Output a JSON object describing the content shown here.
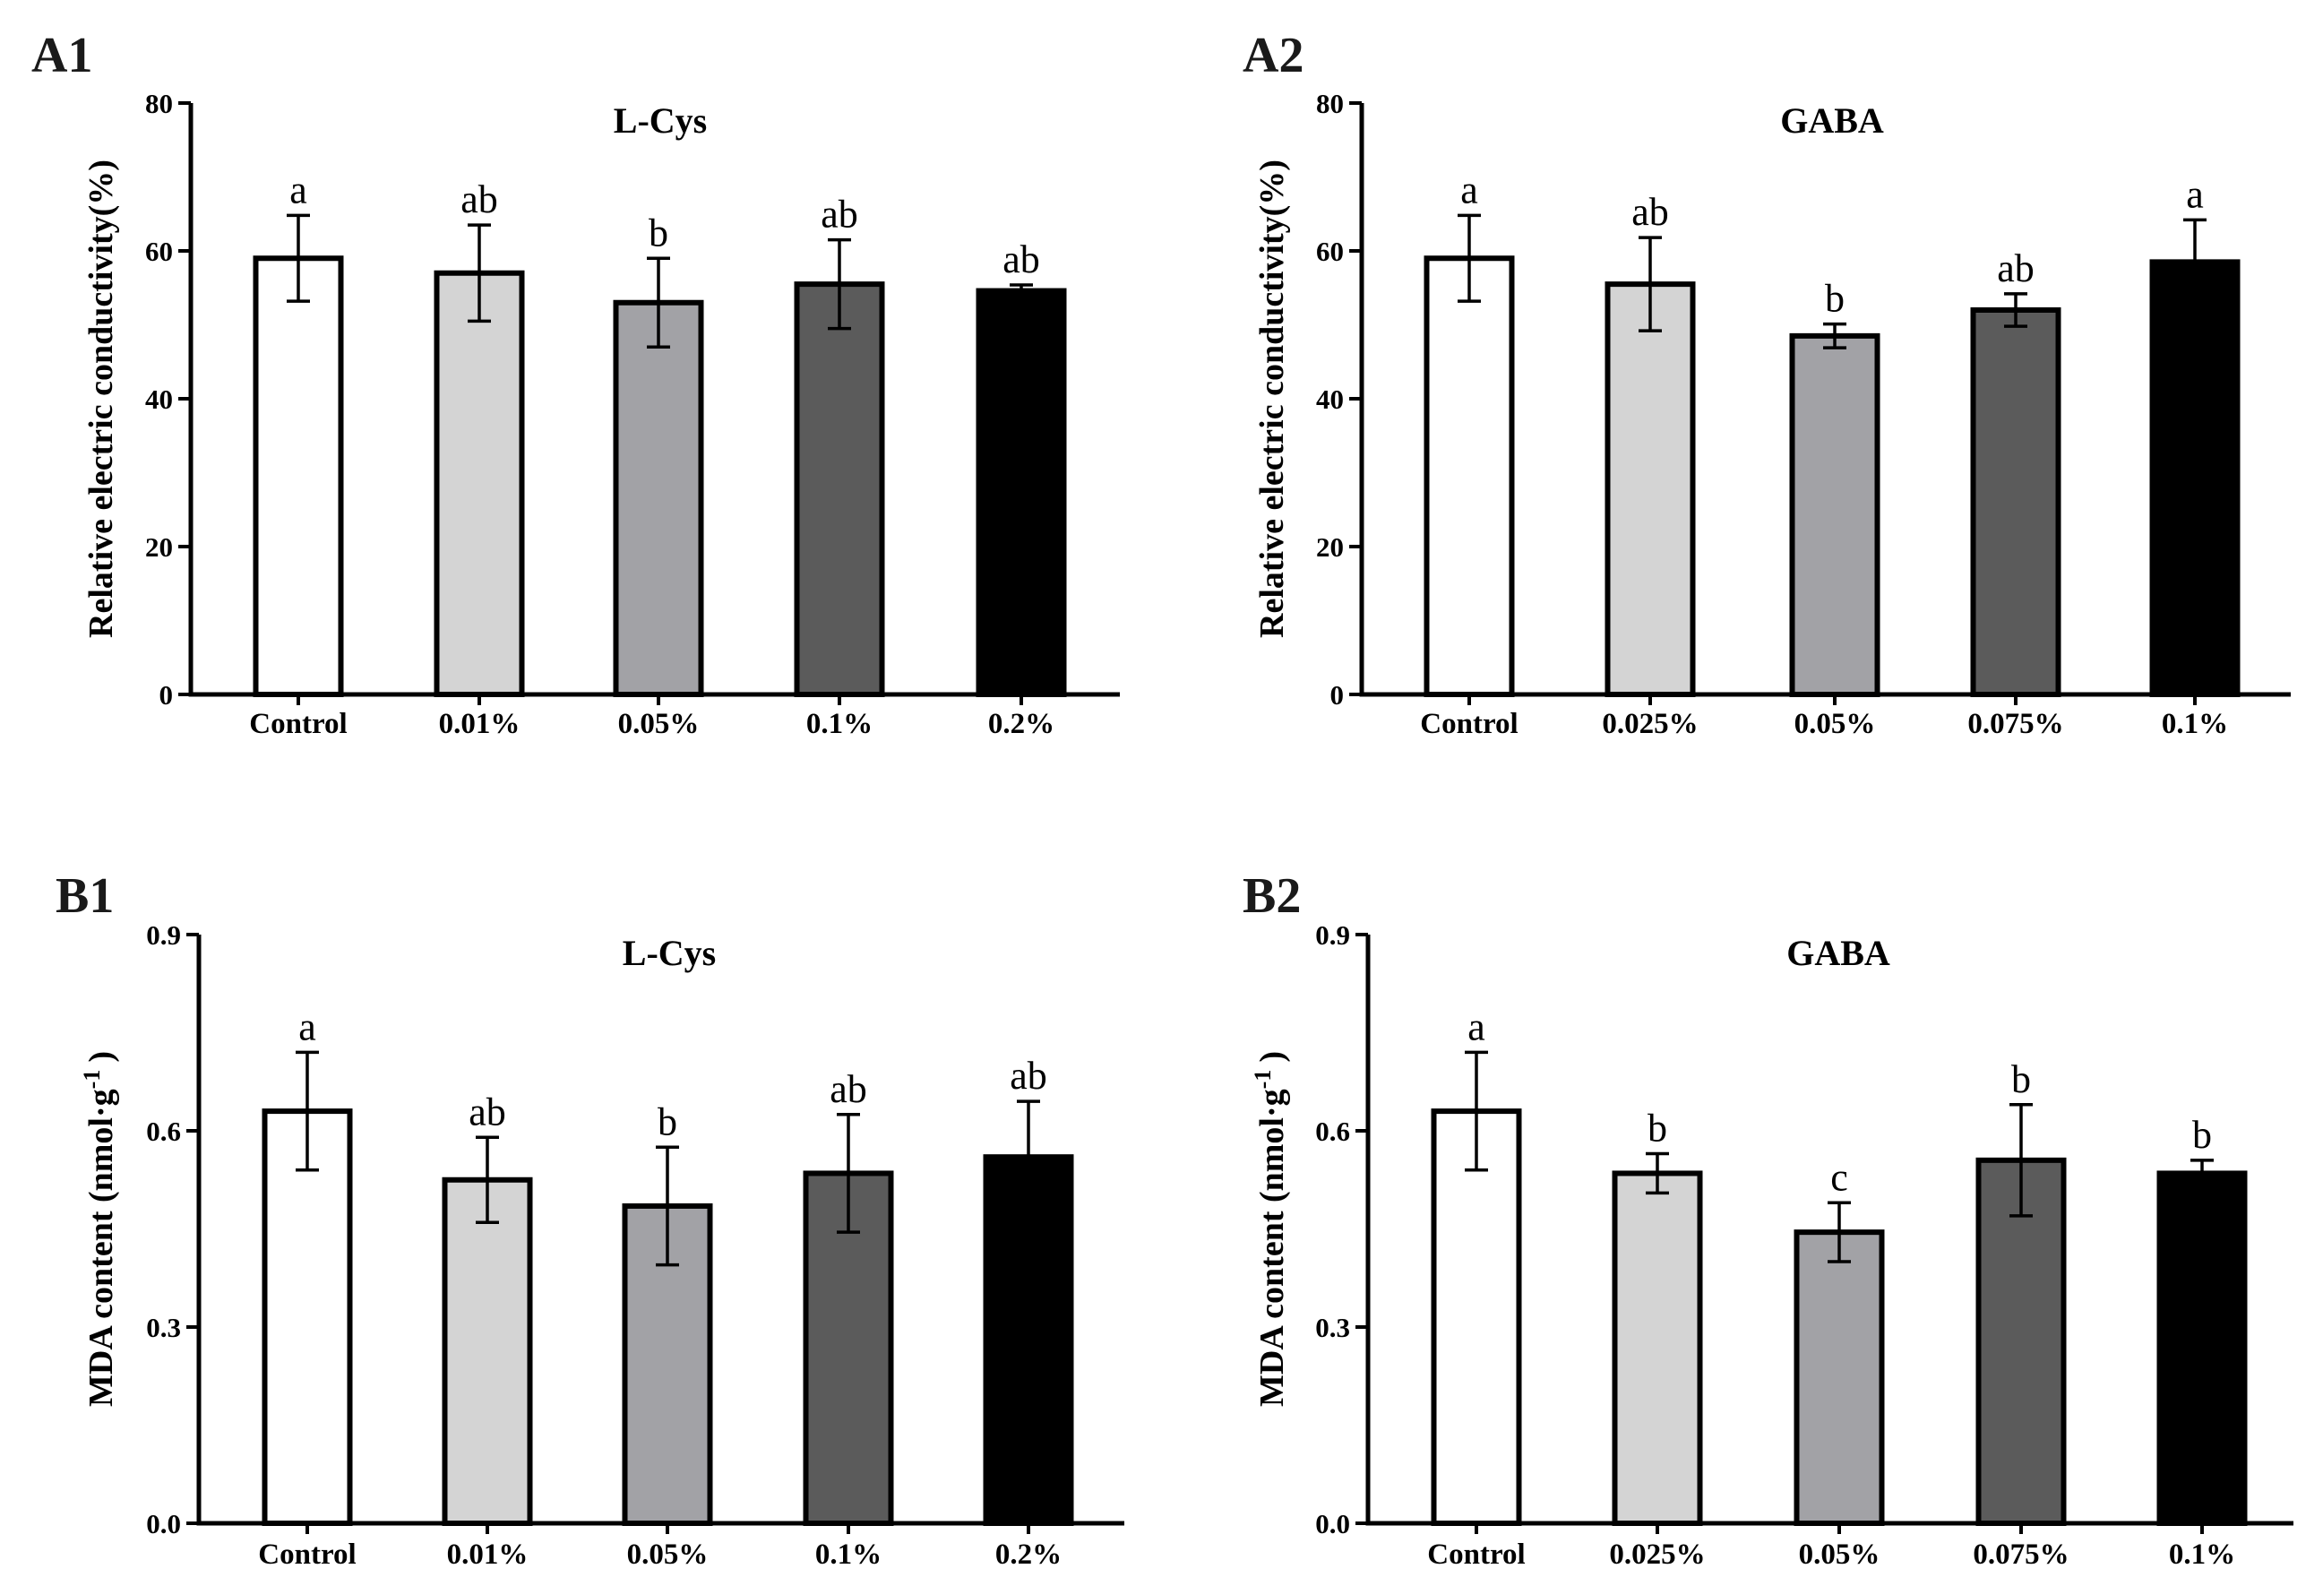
{
  "figure": {
    "panels": [
      "A1",
      "A2",
      "B1",
      "B2"
    ]
  },
  "chart_data": [
    {
      "panel_label": "A1",
      "type": "bar",
      "title": "L-Cys",
      "ylabel": "Relative electric conductivity(%)",
      "xlabel": "",
      "ylim": [
        0,
        80
      ],
      "yticks": [
        "0",
        "20",
        "40",
        "60",
        "80"
      ],
      "categories": [
        "Control",
        "0.01%",
        "0.05%",
        "0.1%",
        "0.2%"
      ],
      "values": [
        59,
        57,
        53,
        55.5,
        54.6
      ],
      "errors": [
        5.8,
        6.5,
        6.0,
        6.0,
        0.8
      ],
      "letters": [
        "a",
        "ab",
        "b",
        "ab",
        "ab"
      ],
      "bar_colors": [
        "#ffffff",
        "#d4d4d4",
        "#a2a2a6",
        "#5b5b5b",
        "#000000"
      ]
    },
    {
      "panel_label": "A2",
      "type": "bar",
      "title": "GABA",
      "ylabel": "Relative electric conductivity(%)",
      "xlabel": "",
      "ylim": [
        0,
        80
      ],
      "yticks": [
        "0",
        "20",
        "40",
        "60",
        "80"
      ],
      "categories": [
        "Control",
        "0.025%",
        "0.05%",
        "0.075%",
        "0.1%"
      ],
      "values": [
        59,
        55.5,
        48.5,
        52,
        58.5
      ],
      "errors": [
        5.8,
        6.3,
        1.6,
        2.2,
        5.7
      ],
      "letters": [
        "a",
        "ab",
        "b",
        "ab",
        "a"
      ],
      "bar_colors": [
        "#ffffff",
        "#d4d4d4",
        "#a2a2a6",
        "#5b5b5b",
        "#000000"
      ]
    },
    {
      "panel_label": "B1",
      "type": "bar",
      "title": "L-Cys",
      "ylabel_main": "MDA content (nmol·g",
      "ylabel_sup": "-1",
      "ylabel_end": ")",
      "xlabel": "",
      "ylim": [
        0,
        0.9
      ],
      "yticks": [
        "0.0",
        "0.3",
        "0.6",
        "0.9"
      ],
      "categories": [
        "Control",
        "0.01%",
        "0.05%",
        "0.1%",
        "0.2%"
      ],
      "values": [
        0.63,
        0.525,
        0.485,
        0.535,
        0.56
      ],
      "errors": [
        0.09,
        0.065,
        0.09,
        0.09,
        0.085
      ],
      "letters": [
        "a",
        "ab",
        "b",
        "ab",
        "ab"
      ],
      "bar_colors": [
        "#ffffff",
        "#d4d4d4",
        "#a2a2a6",
        "#5b5b5b",
        "#000000"
      ]
    },
    {
      "panel_label": "B2",
      "type": "bar",
      "title": "GABA",
      "ylabel_main": "MDA content (nmol·g",
      "ylabel_sup": "-1",
      "ylabel_end": ")",
      "xlabel": "",
      "ylim": [
        0,
        0.9
      ],
      "yticks": [
        "0.0",
        "0.3",
        "0.6",
        "0.9"
      ],
      "categories": [
        "Control",
        "0.025%",
        "0.05%",
        "0.075%",
        "0.1%"
      ],
      "values": [
        0.63,
        0.535,
        0.445,
        0.555,
        0.535
      ],
      "errors": [
        0.09,
        0.03,
        0.045,
        0.085,
        0.02
      ],
      "letters": [
        "a",
        "b",
        "c",
        "b",
        "b"
      ],
      "bar_colors": [
        "#ffffff",
        "#d4d4d4",
        "#a2a2a6",
        "#5b5b5b",
        "#000000"
      ]
    }
  ]
}
